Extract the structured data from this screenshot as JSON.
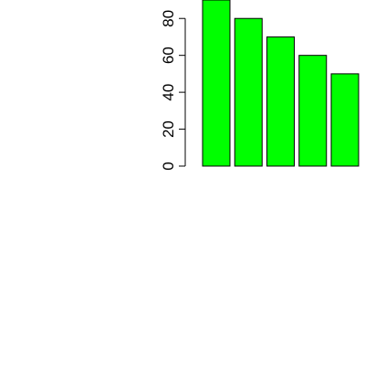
{
  "chart_data": {
    "type": "bar",
    "categories": [
      "",
      "",
      "",
      "",
      ""
    ],
    "values": [
      90,
      80,
      70,
      60,
      50
    ],
    "ylim": [
      0,
      90
    ],
    "y_ticks": [
      "0",
      "20",
      "40",
      "60",
      "80"
    ],
    "y_tick_values": [
      0,
      20,
      40,
      60,
      80
    ],
    "grid": false,
    "bar_color": "#00ff00",
    "bar_edge_color": "#000000",
    "axis_color": "#000000"
  }
}
